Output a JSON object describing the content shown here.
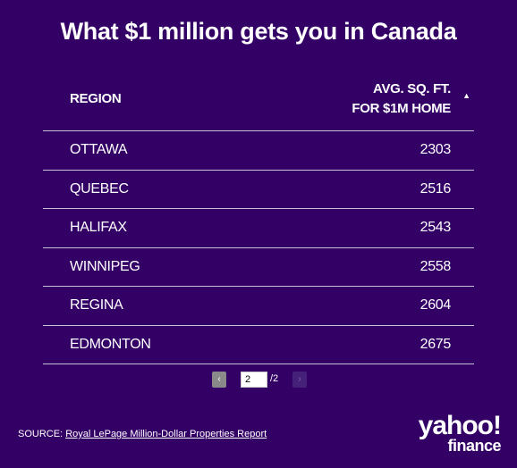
{
  "title": "What $1 million gets you in Canada",
  "table": {
    "header": {
      "region": "REGION",
      "value_line1": "AVG. SQ. FT.",
      "value_line2": "FOR $1M HOME",
      "sort_icon": "▲"
    },
    "rows": [
      {
        "region": "OTTAWA",
        "value": "2303"
      },
      {
        "region": "QUEBEC",
        "value": "2516"
      },
      {
        "region": "HALIFAX",
        "value": "2543"
      },
      {
        "region": "WINNIPEG",
        "value": "2558"
      },
      {
        "region": "REGINA",
        "value": "2604"
      },
      {
        "region": "EDMONTON",
        "value": "2675"
      }
    ]
  },
  "pagination": {
    "prev_icon": "‹",
    "current_page": "2",
    "total": "/2",
    "next_icon": "›"
  },
  "source": {
    "prefix": "SOURCE: ",
    "link_text": "Royal LePage Million-Dollar Properties Report"
  },
  "logo": {
    "line1": "yahoo!",
    "line2": "finance"
  },
  "colors": {
    "background": "#330066",
    "text": "#ffffff",
    "divider": "#c9bfdb"
  },
  "chart_data": {
    "type": "table",
    "title": "What $1 million gets you in Canada",
    "columns": [
      "REGION",
      "AVG. SQ. FT. FOR $1M HOME"
    ],
    "categories": [
      "OTTAWA",
      "QUEBEC",
      "HALIFAX",
      "WINNIPEG",
      "REGINA",
      "EDMONTON"
    ],
    "values": [
      2303,
      2516,
      2543,
      2558,
      2604,
      2675
    ]
  }
}
